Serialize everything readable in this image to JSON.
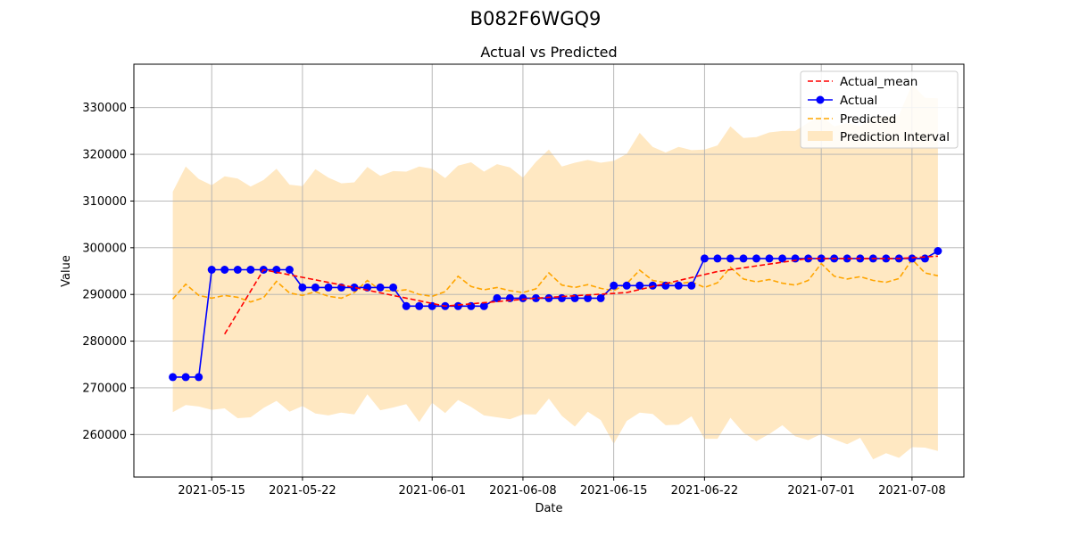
{
  "figure": {
    "suptitle": "B082F6WGQ9"
  },
  "colors": {
    "actual": "#0000ff",
    "actual_mean": "#ff0000",
    "predicted": "#ffa500",
    "interval": "#ffe8c2",
    "grid": "#b0b0b0"
  },
  "chart_data": {
    "type": "line",
    "title": "Actual vs Predicted",
    "xlabel": "Date",
    "ylabel": "Value",
    "grid": true,
    "legend_position": "top-right",
    "xlim": [
      "2021-05-09",
      "2021-07-12"
    ],
    "ylim": [
      250900,
      339300
    ],
    "x_ticks": [
      "2021-05-15",
      "2021-05-22",
      "2021-06-01",
      "2021-06-08",
      "2021-06-15",
      "2021-06-22",
      "2021-07-01",
      "2021-07-08"
    ],
    "y_ticks": [
      260000,
      270000,
      280000,
      290000,
      300000,
      310000,
      320000,
      330000
    ],
    "y_tick_labels": [
      "260000",
      "270000",
      "280000",
      "290000",
      "300000",
      "310000",
      "320000",
      "330000"
    ],
    "legend": [
      "Actual_mean",
      "Actual",
      "Predicted",
      "Prediction Interval"
    ],
    "series": [
      {
        "name": "Actual",
        "style": "solid line with circle markers",
        "x": [
          "2021-05-12",
          "2021-05-13",
          "2021-05-14",
          "2021-05-15",
          "2021-05-16",
          "2021-05-17",
          "2021-05-18",
          "2021-05-19",
          "2021-05-20",
          "2021-05-21",
          "2021-05-22",
          "2021-05-23",
          "2021-05-24",
          "2021-05-25",
          "2021-05-26",
          "2021-05-27",
          "2021-05-28",
          "2021-05-29",
          "2021-05-30",
          "2021-05-31",
          "2021-06-01",
          "2021-06-02",
          "2021-06-03",
          "2021-06-04",
          "2021-06-05",
          "2021-06-06",
          "2021-06-07",
          "2021-06-08",
          "2021-06-09",
          "2021-06-10",
          "2021-06-11",
          "2021-06-12",
          "2021-06-13",
          "2021-06-14",
          "2021-06-15",
          "2021-06-16",
          "2021-06-17",
          "2021-06-18",
          "2021-06-19",
          "2021-06-20",
          "2021-06-21",
          "2021-06-22",
          "2021-06-23",
          "2021-06-24",
          "2021-06-25",
          "2021-06-26",
          "2021-06-27",
          "2021-06-28",
          "2021-06-29",
          "2021-06-30",
          "2021-07-01",
          "2021-07-02",
          "2021-07-03",
          "2021-07-04",
          "2021-07-05",
          "2021-07-06",
          "2021-07-07",
          "2021-07-08",
          "2021-07-09",
          "2021-07-10"
        ],
        "values": [
          272300,
          272300,
          272300,
          295300,
          295300,
          295300,
          295300,
          295300,
          295300,
          295300,
          291500,
          291500,
          291500,
          291500,
          291500,
          291500,
          291500,
          291500,
          287500,
          287500,
          287500,
          287500,
          287500,
          287500,
          287500,
          289200,
          289200,
          289200,
          289200,
          289200,
          289200,
          289200,
          289200,
          289200,
          291900,
          291900,
          291900,
          291900,
          291900,
          291900,
          291900,
          297700,
          297700,
          297700,
          297700,
          297700,
          297700,
          297700,
          297700,
          297700,
          297700,
          297700,
          297700,
          297700,
          297700,
          297700,
          297700,
          297700,
          297700,
          299300
        ]
      },
      {
        "name": "Actual_mean",
        "style": "dashed line",
        "x": [
          "2021-05-16",
          "2021-05-19",
          "2021-05-26",
          "2021-06-02",
          "2021-06-09",
          "2021-06-16",
          "2021-06-23",
          "2021-06-30",
          "2021-07-07",
          "2021-07-10"
        ],
        "values": [
          281500,
          295300,
          291500,
          287500,
          289200,
          290400,
          294900,
          297700,
          297700,
          298200
        ]
      },
      {
        "name": "Predicted",
        "style": "dashed line",
        "x": [
          "2021-05-12",
          "2021-05-13",
          "2021-05-14",
          "2021-05-15",
          "2021-05-16",
          "2021-05-17",
          "2021-05-18",
          "2021-05-19",
          "2021-05-20",
          "2021-05-21",
          "2021-05-22",
          "2021-05-23",
          "2021-05-24",
          "2021-05-25",
          "2021-05-26",
          "2021-05-27",
          "2021-05-28",
          "2021-05-29",
          "2021-05-30",
          "2021-05-31",
          "2021-06-01",
          "2021-06-02",
          "2021-06-03",
          "2021-06-04",
          "2021-06-05",
          "2021-06-06",
          "2021-06-07",
          "2021-06-08",
          "2021-06-09",
          "2021-06-10",
          "2021-06-11",
          "2021-06-12",
          "2021-06-13",
          "2021-06-14",
          "2021-06-15",
          "2021-06-16",
          "2021-06-17",
          "2021-06-18",
          "2021-06-19",
          "2021-06-20",
          "2021-06-21",
          "2021-06-22",
          "2021-06-23",
          "2021-06-24",
          "2021-06-25",
          "2021-06-26",
          "2021-06-27",
          "2021-06-28",
          "2021-06-29",
          "2021-06-30",
          "2021-07-01",
          "2021-07-02",
          "2021-07-03",
          "2021-07-04",
          "2021-07-05",
          "2021-07-06",
          "2021-07-07",
          "2021-07-08",
          "2021-07-09",
          "2021-07-10"
        ],
        "values": [
          289000,
          292200,
          289800,
          289200,
          289800,
          289400,
          288400,
          289300,
          292800,
          290300,
          289800,
          290600,
          289600,
          289200,
          290400,
          293000,
          290900,
          290700,
          291000,
          290000,
          289600,
          290600,
          293900,
          291700,
          291000,
          291500,
          290800,
          290400,
          291200,
          294600,
          292000,
          291500,
          292100,
          291300,
          290800,
          292300,
          295200,
          293000,
          292500,
          292300,
          292700,
          291500,
          292500,
          295800,
          293300,
          292700,
          293200,
          292400,
          292000,
          293000,
          296600,
          293900,
          293300,
          293800,
          293000,
          292600,
          293400,
          297500,
          294600,
          294000
        ]
      },
      {
        "name": "Prediction Interval",
        "style": "filled band",
        "x": [
          "2021-05-12",
          "2021-05-13",
          "2021-05-14",
          "2021-05-15",
          "2021-05-16",
          "2021-05-17",
          "2021-05-18",
          "2021-05-19",
          "2021-05-20",
          "2021-05-21",
          "2021-05-22",
          "2021-05-23",
          "2021-05-24",
          "2021-05-25",
          "2021-05-26",
          "2021-05-27",
          "2021-05-28",
          "2021-05-29",
          "2021-05-30",
          "2021-05-31",
          "2021-06-01",
          "2021-06-02",
          "2021-06-03",
          "2021-06-04",
          "2021-06-05",
          "2021-06-06",
          "2021-06-07",
          "2021-06-08",
          "2021-06-09",
          "2021-06-10",
          "2021-06-11",
          "2021-06-12",
          "2021-06-13",
          "2021-06-14",
          "2021-06-15",
          "2021-06-16",
          "2021-06-17",
          "2021-06-18",
          "2021-06-19",
          "2021-06-20",
          "2021-06-21",
          "2021-06-22",
          "2021-06-23",
          "2021-06-24",
          "2021-06-25",
          "2021-06-26",
          "2021-06-27",
          "2021-06-28",
          "2021-06-29",
          "2021-06-30",
          "2021-07-01",
          "2021-07-02",
          "2021-07-03",
          "2021-07-04",
          "2021-07-05",
          "2021-07-06",
          "2021-07-07",
          "2021-07-08",
          "2021-07-09",
          "2021-07-10"
        ],
        "upper": [
          312000,
          317400,
          314700,
          313400,
          315300,
          314800,
          313100,
          314500,
          316900,
          313500,
          313200,
          316800,
          315000,
          313800,
          314000,
          317300,
          315400,
          316400,
          316300,
          317400,
          316900,
          314900,
          317600,
          318300,
          316300,
          317900,
          317200,
          315000,
          318400,
          321000,
          317400,
          318200,
          318800,
          318200,
          318600,
          320100,
          324600,
          321600,
          320400,
          321600,
          320900,
          321000,
          321900,
          326000,
          323500,
          323700,
          324700,
          325000,
          325000,
          326800,
          328200,
          326000,
          326700,
          326000,
          327800,
          328100,
          328400,
          335000,
          332100,
          332000
        ],
        "lower": [
          264800,
          266300,
          266000,
          265300,
          265600,
          263500,
          263700,
          265700,
          267200,
          264900,
          266100,
          264500,
          264100,
          264700,
          264300,
          268600,
          265200,
          265800,
          266500,
          262700,
          266800,
          264600,
          267400,
          265900,
          264100,
          263700,
          263300,
          264300,
          264300,
          267700,
          264000,
          261700,
          264900,
          263100,
          258000,
          262900,
          264700,
          264400,
          262000,
          262100,
          263900,
          259100,
          259100,
          263600,
          260400,
          258600,
          260100,
          262000,
          259600,
          258800,
          260100,
          259000,
          257900,
          259300,
          254700,
          256000,
          255000,
          257300,
          257200,
          256500
        ]
      }
    ]
  }
}
